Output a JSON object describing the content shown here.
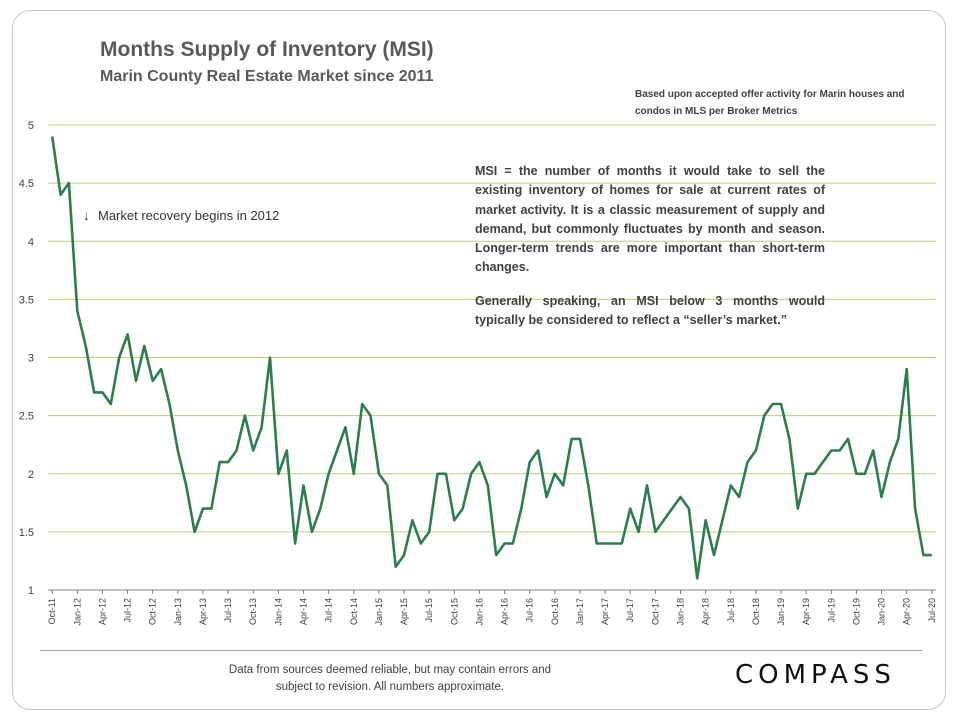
{
  "header": {
    "title": "Months Supply of Inventory (MSI)",
    "subtitle": "Marin County Real Estate Market since 2011",
    "source_note": "Based upon accepted offer activity for Marin houses and condos in MLS per Broker Metrics"
  },
  "annotation": {
    "arrow": "↓",
    "text": "Market recovery begins in 2012"
  },
  "definition": {
    "paragraph1": "MSI = the number of months it would take to sell the existing inventory of homes for sale at current rates of market activity.  It is a classic measurement of supply and demand, but commonly fluctuates by month and season. Longer-term trends are more important than short-term changes.",
    "paragraph2": "Generally speaking, an MSI below 3 months would typically be considered to reflect a “seller’s market.”"
  },
  "footer": {
    "disclaimer_line1": "Data from sources deemed reliable, but may contain errors and",
    "disclaimer_line2": "subject to revision. All numbers approximate.",
    "logo_text": "COMPASS"
  },
  "colors": {
    "line": "#2e7d4f",
    "grid": "#b7d07a",
    "text": "#404040"
  },
  "chart_data": {
    "type": "line",
    "title": "Months Supply of Inventory (MSI)",
    "subtitle": "Marin County Real Estate Market since 2011",
    "xlabel": "",
    "ylabel": "",
    "ylim": [
      1,
      5
    ],
    "yticks": [
      1,
      1.5,
      2,
      2.5,
      3,
      3.5,
      4,
      4.5,
      5
    ],
    "grid": true,
    "legend": "none",
    "x_tick_labels": [
      "Oct-11",
      "Jan-12",
      "Apr-12",
      "Jul-12",
      "Oct-12",
      "Jan-13",
      "Apr-13",
      "Jul-13",
      "Oct-13",
      "Jan-14",
      "Apr-14",
      "Jul-14",
      "Oct-14",
      "Jan-15",
      "Apr-15",
      "Jul-15",
      "Oct-15",
      "Jan-16",
      "Apr-16",
      "Jul-16",
      "Oct-16",
      "Jan-17",
      "Apr-17",
      "Jul-17",
      "Oct-17",
      "Jan-18",
      "Apr-18",
      "Jul-18",
      "Oct-18",
      "Jan-19",
      "Apr-19",
      "Jul-19",
      "Oct-19",
      "Jan-20",
      "Apr-20",
      "Jul-20"
    ],
    "series": [
      {
        "values": [
          4.9,
          4.4,
          4.5,
          3.4,
          3.1,
          2.7,
          2.7,
          2.6,
          3.0,
          3.2,
          2.8,
          3.1,
          2.8,
          2.9,
          2.6,
          2.2,
          1.9,
          1.5,
          1.7,
          1.7,
          2.1,
          2.1,
          2.2,
          2.5,
          2.2,
          2.4,
          3.0,
          2.0,
          2.2,
          1.4,
          1.9,
          1.5,
          1.7,
          2.0,
          2.2,
          2.4,
          2.0,
          2.6,
          2.5,
          2.0,
          1.9,
          1.2,
          1.3,
          1.6,
          1.4,
          1.5,
          2.0,
          2.0,
          1.6,
          1.7,
          2.0,
          2.1,
          1.9,
          1.3,
          1.4,
          1.4,
          1.7,
          2.1,
          2.2,
          1.8,
          2.0,
          1.9,
          2.3,
          2.3,
          1.9,
          1.4,
          1.4,
          1.4,
          1.4,
          1.7,
          1.5,
          1.9,
          1.5,
          1.6,
          1.7,
          1.8,
          1.7,
          1.1,
          1.6,
          1.3,
          1.6,
          1.9,
          1.8,
          2.1,
          2.2,
          2.5,
          2.6,
          2.6,
          2.3,
          1.7,
          2.0,
          2.0,
          2.1,
          2.2,
          2.2,
          2.3,
          2.0,
          2.0,
          2.2,
          1.8,
          2.1,
          2.3,
          2.9,
          1.7,
          1.3,
          1.3
        ]
      }
    ]
  }
}
